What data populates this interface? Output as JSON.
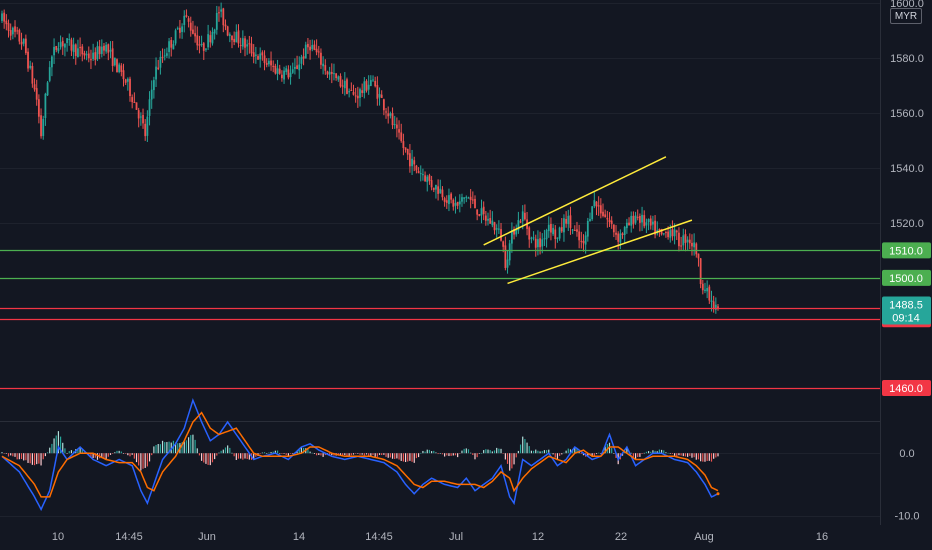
{
  "currency": "MYR",
  "colors": {
    "background": "#131722",
    "bull": "#26a69a",
    "bear": "#ef5350",
    "support": "#4caf50",
    "resistance": "#f23645",
    "channel": "#ffeb3b",
    "macd": "#2962ff",
    "signal": "#ff6d00"
  },
  "chart_data": {
    "type": "candlestick",
    "price_axis": {
      "range": [
        1448,
        1601
      ],
      "ticks": [
        "1600.0",
        "1580.0",
        "1560.0",
        "1540.0",
        "1520.0",
        "1500.0"
      ]
    },
    "x_axis": {
      "ticks": [
        "10",
        "14:45",
        "Jun",
        "14",
        "14:45",
        "Jul",
        "12",
        "22",
        "Aug",
        "16"
      ]
    },
    "price_path": [
      [
        0,
        1594
      ],
      [
        2,
        1592
      ],
      [
        10,
        1585
      ],
      [
        16,
        1565
      ],
      [
        18,
        1552
      ],
      [
        22,
        1578
      ],
      [
        26,
        1586
      ],
      [
        30,
        1585
      ],
      [
        36,
        1582
      ],
      [
        42,
        1580
      ],
      [
        47,
        1585
      ],
      [
        52,
        1578
      ],
      [
        58,
        1570
      ],
      [
        63,
        1560
      ],
      [
        66,
        1552
      ],
      [
        70,
        1574
      ],
      [
        75,
        1582
      ],
      [
        80,
        1588
      ],
      [
        84,
        1595
      ],
      [
        88,
        1590
      ],
      [
        92,
        1583
      ],
      [
        96,
        1588
      ],
      [
        100,
        1597
      ],
      [
        104,
        1590
      ],
      [
        110,
        1586
      ],
      [
        116,
        1582
      ],
      [
        122,
        1578
      ],
      [
        128,
        1575
      ],
      [
        134,
        1574
      ],
      [
        138,
        1580
      ],
      [
        142,
        1585
      ],
      [
        146,
        1580
      ],
      [
        150,
        1575
      ],
      [
        154,
        1572
      ],
      [
        158,
        1570
      ],
      [
        162,
        1566
      ],
      [
        166,
        1568
      ],
      [
        170,
        1572
      ],
      [
        174,
        1566
      ],
      [
        178,
        1560
      ],
      [
        182,
        1552
      ],
      [
        186,
        1546
      ],
      [
        190,
        1540
      ],
      [
        194,
        1538
      ],
      [
        198,
        1534
      ],
      [
        202,
        1532
      ],
      [
        206,
        1528
      ],
      [
        210,
        1526
      ],
      [
        214,
        1530
      ],
      [
        218,
        1526
      ],
      [
        222,
        1522
      ],
      [
        226,
        1520
      ],
      [
        230,
        1515
      ],
      [
        232,
        1506
      ],
      [
        236,
        1518
      ],
      [
        240,
        1523
      ],
      [
        244,
        1514
      ],
      [
        248,
        1512
      ],
      [
        252,
        1520
      ],
      [
        256,
        1514
      ],
      [
        260,
        1522
      ],
      [
        264,
        1516
      ],
      [
        268,
        1511
      ],
      [
        272,
        1528
      ],
      [
        276,
        1525
      ],
      [
        280,
        1520
      ],
      [
        284,
        1515
      ],
      [
        288,
        1518
      ],
      [
        292,
        1523
      ],
      [
        296,
        1520
      ],
      [
        300,
        1518
      ],
      [
        304,
        1515
      ],
      [
        308,
        1518
      ],
      [
        312,
        1513
      ],
      [
        316,
        1515
      ],
      [
        320,
        1510
      ],
      [
        322,
        1500
      ],
      [
        325,
        1494
      ],
      [
        328,
        1489
      ],
      [
        330,
        1488.5
      ]
    ],
    "candle_count": 331,
    "last_candle": 330,
    "current": {
      "price": "1488.5",
      "countdown": "09:14"
    },
    "levels": [
      {
        "label": "1510.0",
        "value": 1510,
        "kind": "support"
      },
      {
        "label": "1500.0",
        "value": 1500,
        "kind": "support"
      },
      {
        "label": "1489.0",
        "value": 1489,
        "kind": "resistance"
      },
      {
        "label": "1485.0",
        "value": 1485,
        "kind": "resistance"
      },
      {
        "label": "1460.0",
        "value": 1460,
        "kind": "resistance"
      }
    ],
    "channel": [
      {
        "from": [
          222,
          1512
        ],
        "to": [
          306,
          1544
        ]
      },
      {
        "from": [
          233,
          1498
        ],
        "to": [
          318,
          1521
        ]
      }
    ],
    "indicator": {
      "range": [
        -11.5,
        5
      ],
      "ticks": [
        "0.0",
        "-10.0"
      ],
      "macd_path": [
        [
          0,
          -0.5
        ],
        [
          8,
          -3
        ],
        [
          15,
          -7
        ],
        [
          18,
          -9
        ],
        [
          22,
          -6
        ],
        [
          26,
          1
        ],
        [
          30,
          -1
        ],
        [
          36,
          1
        ],
        [
          42,
          -1
        ],
        [
          48,
          -2
        ],
        [
          54,
          -1
        ],
        [
          60,
          -2
        ],
        [
          64,
          -6
        ],
        [
          67,
          -8
        ],
        [
          70,
          -5
        ],
        [
          74,
          -1
        ],
        [
          80,
          1.5
        ],
        [
          84,
          4
        ],
        [
          88,
          8.5
        ],
        [
          92,
          5
        ],
        [
          96,
          2
        ],
        [
          100,
          3
        ],
        [
          104,
          5
        ],
        [
          108,
          3
        ],
        [
          112,
          1
        ],
        [
          116,
          -1
        ],
        [
          120,
          -0.5
        ],
        [
          126,
          0
        ],
        [
          132,
          -1
        ],
        [
          138,
          1
        ],
        [
          142,
          1.5
        ],
        [
          146,
          0.5
        ],
        [
          152,
          -0.5
        ],
        [
          158,
          -1
        ],
        [
          164,
          -0.5
        ],
        [
          170,
          -1
        ],
        [
          176,
          -1.5
        ],
        [
          182,
          -3
        ],
        [
          186,
          -5
        ],
        [
          190,
          -6.5
        ],
        [
          194,
          -5
        ],
        [
          198,
          -4
        ],
        [
          204,
          -5
        ],
        [
          210,
          -5.5
        ],
        [
          214,
          -4
        ],
        [
          218,
          -6
        ],
        [
          222,
          -5
        ],
        [
          226,
          -4
        ],
        [
          230,
          -2
        ],
        [
          234,
          -7
        ],
        [
          236,
          -8
        ],
        [
          240,
          -1
        ],
        [
          244,
          -2
        ],
        [
          248,
          -1
        ],
        [
          252,
          0
        ],
        [
          256,
          -2
        ],
        [
          260,
          -1
        ],
        [
          264,
          1
        ],
        [
          268,
          0
        ],
        [
          272,
          -1
        ],
        [
          276,
          -0.5
        ],
        [
          280,
          3
        ],
        [
          284,
          -1
        ],
        [
          288,
          1
        ],
        [
          292,
          -2
        ],
        [
          296,
          -1
        ],
        [
          300,
          0
        ],
        [
          304,
          0
        ],
        [
          310,
          -1
        ],
        [
          316,
          -1.5
        ],
        [
          320,
          -3
        ],
        [
          324,
          -5
        ],
        [
          327,
          -7
        ],
        [
          330,
          -6.5
        ]
      ],
      "signal_path": [
        [
          0,
          -0.5
        ],
        [
          8,
          -2
        ],
        [
          15,
          -5
        ],
        [
          18,
          -7
        ],
        [
          22,
          -7
        ],
        [
          26,
          -3
        ],
        [
          30,
          -1
        ],
        [
          36,
          0
        ],
        [
          42,
          0
        ],
        [
          48,
          -1
        ],
        [
          54,
          -1.5
        ],
        [
          60,
          -1.5
        ],
        [
          64,
          -3
        ],
        [
          67,
          -5.5
        ],
        [
          70,
          -6
        ],
        [
          74,
          -3
        ],
        [
          80,
          -0.5
        ],
        [
          84,
          2
        ],
        [
          88,
          5
        ],
        [
          92,
          6.5
        ],
        [
          96,
          4
        ],
        [
          100,
          3
        ],
        [
          104,
          3.5
        ],
        [
          108,
          4
        ],
        [
          112,
          2
        ],
        [
          116,
          0
        ],
        [
          120,
          -0.5
        ],
        [
          126,
          -0.5
        ],
        [
          132,
          -0.5
        ],
        [
          138,
          0
        ],
        [
          142,
          1
        ],
        [
          146,
          1
        ],
        [
          152,
          0
        ],
        [
          158,
          -0.5
        ],
        [
          164,
          -0.5
        ],
        [
          170,
          -0.5
        ],
        [
          176,
          -1
        ],
        [
          182,
          -2
        ],
        [
          186,
          -3.5
        ],
        [
          190,
          -5
        ],
        [
          194,
          -5.5
        ],
        [
          198,
          -4.5
        ],
        [
          204,
          -4.5
        ],
        [
          210,
          -5
        ],
        [
          214,
          -5
        ],
        [
          218,
          -5
        ],
        [
          222,
          -5.5
        ],
        [
          226,
          -4.5
        ],
        [
          230,
          -3
        ],
        [
          234,
          -4
        ],
        [
          236,
          -6
        ],
        [
          240,
          -4
        ],
        [
          244,
          -2.5
        ],
        [
          248,
          -1.5
        ],
        [
          252,
          -0.5
        ],
        [
          256,
          -1
        ],
        [
          260,
          -1.5
        ],
        [
          264,
          0
        ],
        [
          268,
          0.5
        ],
        [
          272,
          -0.5
        ],
        [
          276,
          -0.5
        ],
        [
          280,
          1
        ],
        [
          284,
          1
        ],
        [
          288,
          0
        ],
        [
          292,
          -1
        ],
        [
          296,
          -1
        ],
        [
          300,
          -0.5
        ],
        [
          304,
          -0.5
        ],
        [
          310,
          -0.5
        ],
        [
          316,
          -1
        ],
        [
          320,
          -2
        ],
        [
          324,
          -3.5
        ],
        [
          327,
          -5.5
        ],
        [
          330,
          -6
        ]
      ]
    }
  }
}
